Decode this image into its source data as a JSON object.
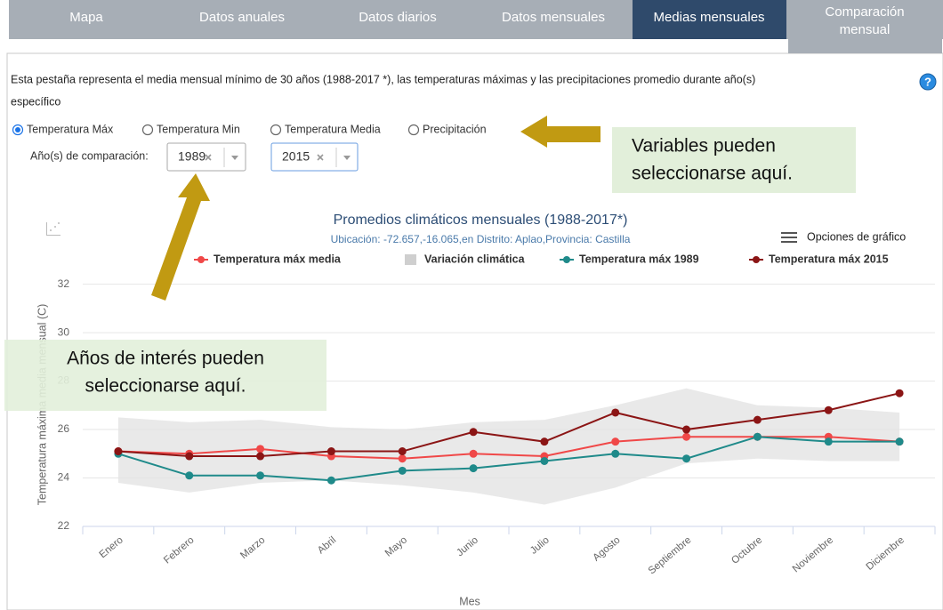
{
  "tabs": [
    [
      "Mapa"
    ],
    [
      "Datos anuales"
    ],
    [
      "Datos diarios"
    ],
    [
      "Datos mensuales"
    ],
    [
      "Medias mensuales"
    ],
    [
      "Comparación",
      "mensual"
    ]
  ],
  "active_tab": 4,
  "description": [
    "Esta pestaña representa el media mensual mínimo de 30 años (1988-2017 *), las temperaturas máximas y las precipitaciones promedio durante año(s)",
    "específico"
  ],
  "variables": [
    "Temperatura Máx",
    "Temperatura Min",
    "Temperatura Media",
    "Precipitación"
  ],
  "selected_variable": 0,
  "comparison": {
    "label": "Año(s) de comparación:",
    "years": [
      "1989",
      "2015"
    ]
  },
  "callouts": [
    {
      "lines": [
        "Variables pueden",
        "seleccionarse aquí."
      ]
    },
    {
      "lines": [
        "Años de interés pueden",
        "seleccionarse aquí."
      ]
    }
  ],
  "chart_data": {
    "type": "line",
    "title": "Promedios climáticos mensuales (1988-2017*)",
    "subtitle": "Ubicación: -72.657,-16.065,en Distrito: Aplao,Provincia: Castilla",
    "menu_label": "Opciones de gráfico",
    "x_label": "Mes",
    "y_label": "Temperatura máxima media mensual (C)",
    "categories": [
      "Enero",
      "Febrero",
      "Marzo",
      "Abril",
      "Mayo",
      "Junio",
      "Julio",
      "Agosto",
      "Septiembre",
      "Octubre",
      "Noviembre",
      "Diciembre"
    ],
    "series": [
      {
        "name": "Temperatura máx media",
        "color": "#f04848",
        "values": [
          25.1,
          25.0,
          25.2,
          24.9,
          24.8,
          25.0,
          24.9,
          25.5,
          25.7,
          25.7,
          25.7,
          25.5
        ]
      },
      {
        "name": "Variación climática",
        "color": "#e3e3e3",
        "low": [
          23.8,
          23.4,
          23.8,
          23.9,
          23.7,
          23.4,
          22.9,
          23.6,
          24.6,
          24.8,
          24.7,
          24.7
        ],
        "high": [
          26.5,
          26.3,
          26.4,
          26.1,
          26.0,
          26.3,
          26.4,
          27.0,
          27.7,
          27.0,
          26.9,
          26.7
        ]
      },
      {
        "name": "Temperatura máx 1989",
        "color": "#1f8a8a",
        "values": [
          25.0,
          24.1,
          24.1,
          23.9,
          24.3,
          24.4,
          24.7,
          25.0,
          24.8,
          25.7,
          25.5,
          25.5
        ]
      },
      {
        "name": "Temperatura máx 2015",
        "color": "#8b1515",
        "values": [
          25.1,
          24.9,
          24.9,
          25.1,
          25.1,
          25.9,
          25.5,
          26.7,
          26.0,
          26.4,
          26.8,
          27.5
        ]
      }
    ],
    "ylim": [
      22,
      32.5
    ],
    "yticks": [
      22,
      24,
      26,
      28,
      30,
      32
    ],
    "grid": true
  }
}
